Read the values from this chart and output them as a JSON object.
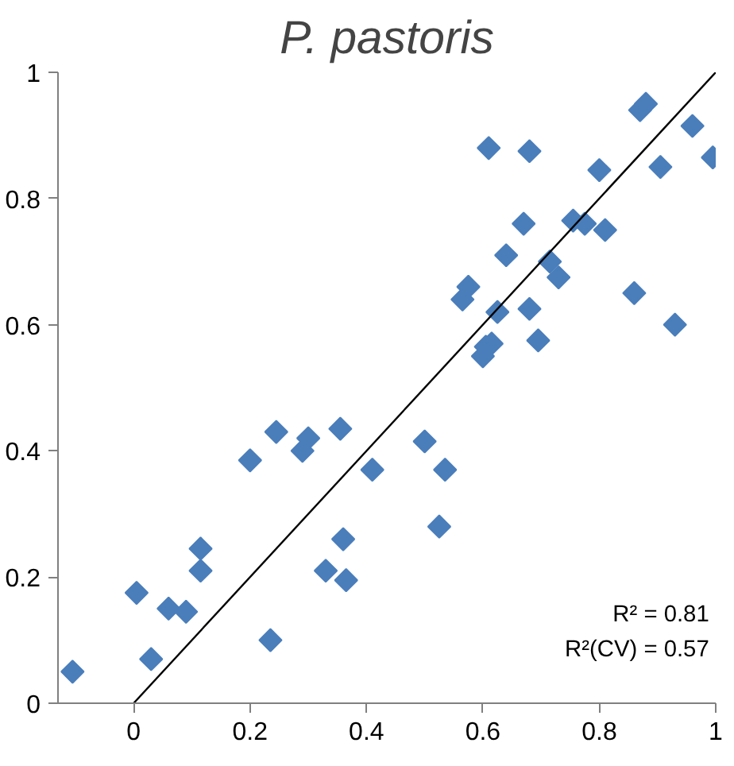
{
  "chart_data": {
    "type": "scatter",
    "title": "P. pastoris",
    "grid": false,
    "xlim": [
      -0.13,
      1
    ],
    "ylim": [
      0,
      1
    ],
    "xticks": [
      0,
      0.2,
      0.4,
      0.6,
      0.8,
      1
    ],
    "yticks": [
      0,
      0.2,
      0.4,
      0.6,
      0.8,
      1
    ],
    "series": [
      {
        "marker": "diamond",
        "color": "#4a7ebb",
        "x": [
          -0.105,
          0.005,
          0.03,
          0.06,
          0.09,
          0.115,
          0.115,
          0.2,
          0.245,
          0.235,
          0.29,
          0.3,
          0.33,
          0.36,
          0.365,
          0.355,
          0.41,
          0.5,
          0.535,
          0.525,
          0.61,
          0.68,
          0.8,
          0.905,
          0.96,
          0.995,
          0.87,
          0.88,
          0.67,
          0.64,
          0.755,
          0.775,
          0.81,
          0.575,
          0.565,
          0.715,
          0.73,
          0.86,
          0.93,
          0.625,
          0.68,
          0.695,
          0.615,
          0.6,
          0.605
        ],
        "values": [
          0.05,
          0.175,
          0.07,
          0.15,
          0.145,
          0.245,
          0.21,
          0.385,
          0.43,
          0.1,
          0.4,
          0.42,
          0.21,
          0.26,
          0.195,
          0.435,
          0.37,
          0.415,
          0.37,
          0.28,
          0.88,
          0.875,
          0.845,
          0.85,
          0.915,
          0.865,
          0.94,
          0.95,
          0.76,
          0.71,
          0.765,
          0.76,
          0.75,
          0.66,
          0.64,
          0.7,
          0.675,
          0.65,
          0.6,
          0.62,
          0.625,
          0.575,
          0.57,
          0.55,
          0.565
        ]
      },
      {
        "type": "line",
        "color": "#000000",
        "x": [
          0,
          1
        ],
        "values": [
          0,
          1
        ]
      }
    ],
    "annotations": [
      "R² = 0.81",
      "R²(CV) = 0.57"
    ]
  }
}
